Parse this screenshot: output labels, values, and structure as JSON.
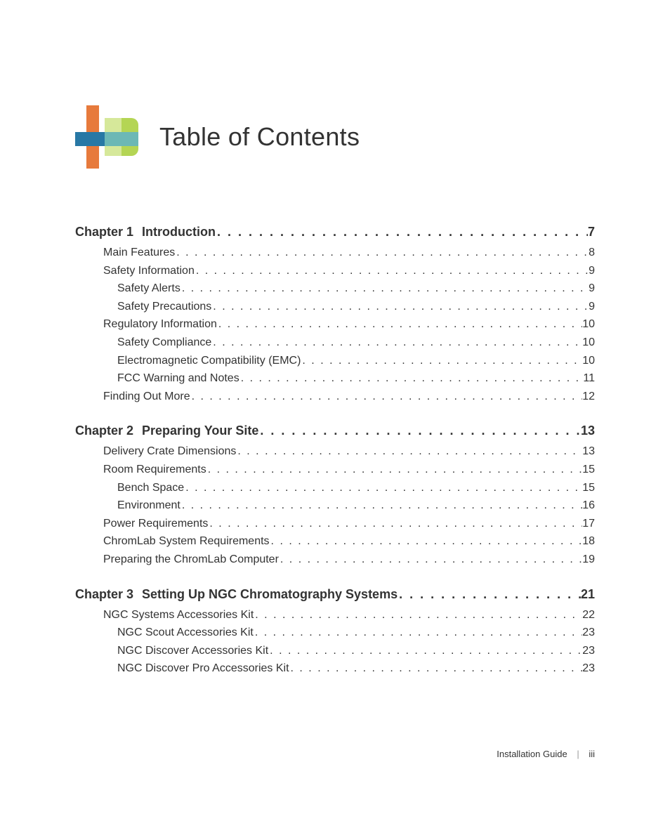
{
  "title": "Table of Contents",
  "logo": {
    "colors": {
      "orange": "#e77a3c",
      "green": "#b4d554",
      "teal": "#6cb8b5",
      "blue": "#2878a5",
      "light_green": "#d6e89a"
    }
  },
  "chapters": [
    {
      "label": "Chapter 1",
      "title": "Introduction",
      "page": "7",
      "entries": [
        {
          "label": "Main Features",
          "page": "8",
          "level": 1
        },
        {
          "label": "Safety Information",
          "page": "9",
          "level": 1
        },
        {
          "label": "Safety Alerts",
          "page": "9",
          "level": 2
        },
        {
          "label": "Safety Precautions",
          "page": "9",
          "level": 2
        },
        {
          "label": "Regulatory Information",
          "page": "10",
          "level": 1
        },
        {
          "label": "Safety Compliance",
          "page": "10",
          "level": 2
        },
        {
          "label": "Electromagnetic Compatibility (EMC)",
          "page": "10",
          "level": 2
        },
        {
          "label": "FCC Warning and Notes",
          "page": "11",
          "level": 2
        },
        {
          "label": "Finding Out More",
          "page": "12",
          "level": 1
        }
      ]
    },
    {
      "label": "Chapter 2",
      "title": "Preparing Your Site",
      "page": "13",
      "entries": [
        {
          "label": "Delivery Crate Dimensions",
          "page": "13",
          "level": 1
        },
        {
          "label": "Room Requirements",
          "page": "15",
          "level": 1
        },
        {
          "label": "Bench Space",
          "page": "15",
          "level": 2
        },
        {
          "label": "Environment",
          "page": "16",
          "level": 2
        },
        {
          "label": "Power Requirements",
          "page": "17",
          "level": 1
        },
        {
          "label": "ChromLab System Requirements",
          "page": "18",
          "level": 1
        },
        {
          "label": "Preparing the ChromLab Computer",
          "page": "19",
          "level": 1
        }
      ]
    },
    {
      "label": "Chapter 3",
      "title": "Setting Up NGC Chromatography Systems",
      "page": "21",
      "entries": [
        {
          "label": "NGC Systems Accessories Kit",
          "page": "22",
          "level": 1
        },
        {
          "label": "NGC Scout Accessories Kit",
          "page": "23",
          "level": 2
        },
        {
          "label": "NGC Discover Accessories Kit",
          "page": "23",
          "level": 2
        },
        {
          "label": "NGC Discover Pro Accessories Kit",
          "page": "23",
          "level": 2
        }
      ]
    }
  ],
  "footer": {
    "doc_title": "Installation Guide",
    "page_number": "iii"
  },
  "styles": {
    "title_fontsize": 36,
    "chapter_fontsize": 18,
    "entry_fontsize": 16,
    "footer_fontsize": 13,
    "text_color": "#333333",
    "background_color": "#ffffff"
  }
}
